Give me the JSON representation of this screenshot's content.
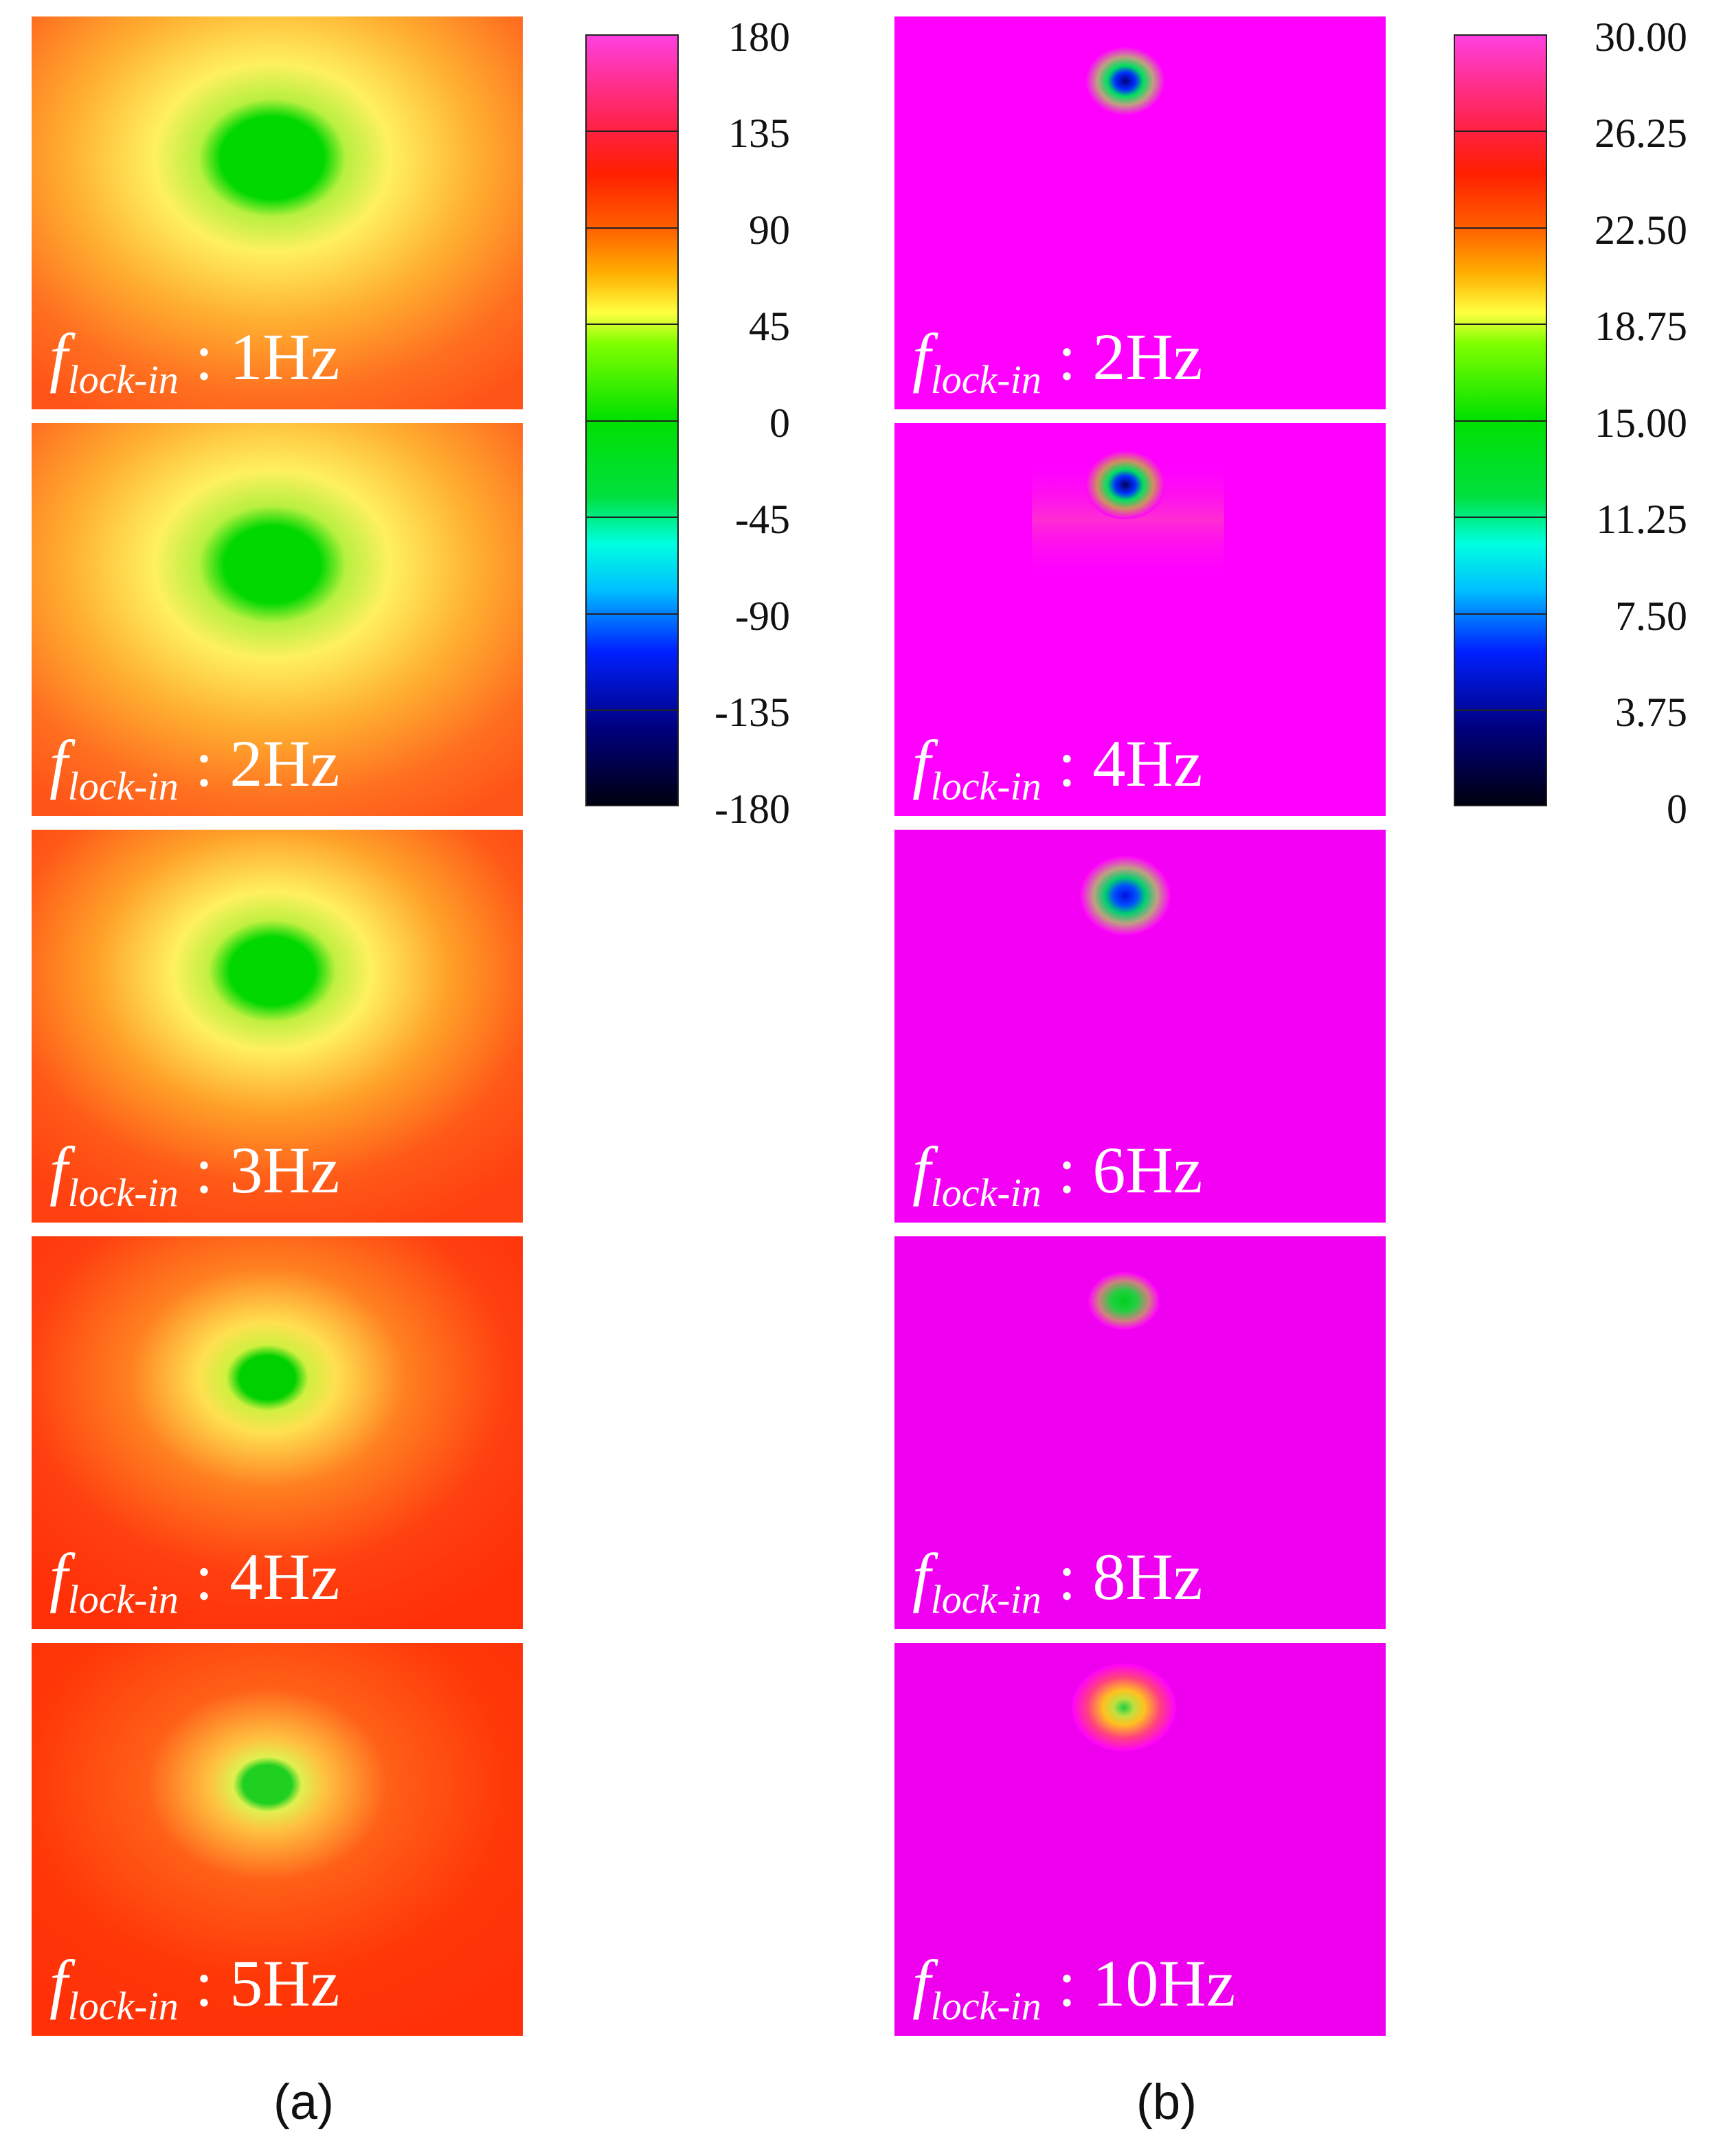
{
  "figure": {
    "panel_a": {
      "caption": "(a)",
      "frequencies": [
        "1Hz",
        "2Hz",
        "3Hz",
        "4Hz",
        "5Hz"
      ],
      "colorbar": {
        "ticks": [
          "180",
          "135",
          "90",
          "45",
          "0",
          "-45",
          "-90",
          "-135",
          "-180"
        ]
      }
    },
    "panel_b": {
      "caption": "(b)",
      "frequencies": [
        "2Hz",
        "4Hz",
        "6Hz",
        "8Hz",
        "10Hz"
      ],
      "colorbar": {
        "ticks": [
          "30.00",
          "26.25",
          "22.50",
          "18.75",
          "15.00",
          "11.25",
          "7.50",
          "3.75",
          "0"
        ]
      }
    },
    "label_f": "f",
    "label_sub": "lock-in",
    "label_sep": " : "
  },
  "colors": {
    "magenta": "#ff00ff",
    "red": "#ff2000",
    "orange": "#ff7a00",
    "yellow": "#ffff00",
    "green": "#00e000",
    "cyan": "#00ffff",
    "blue": "#0000ff",
    "navy": "#000020"
  }
}
